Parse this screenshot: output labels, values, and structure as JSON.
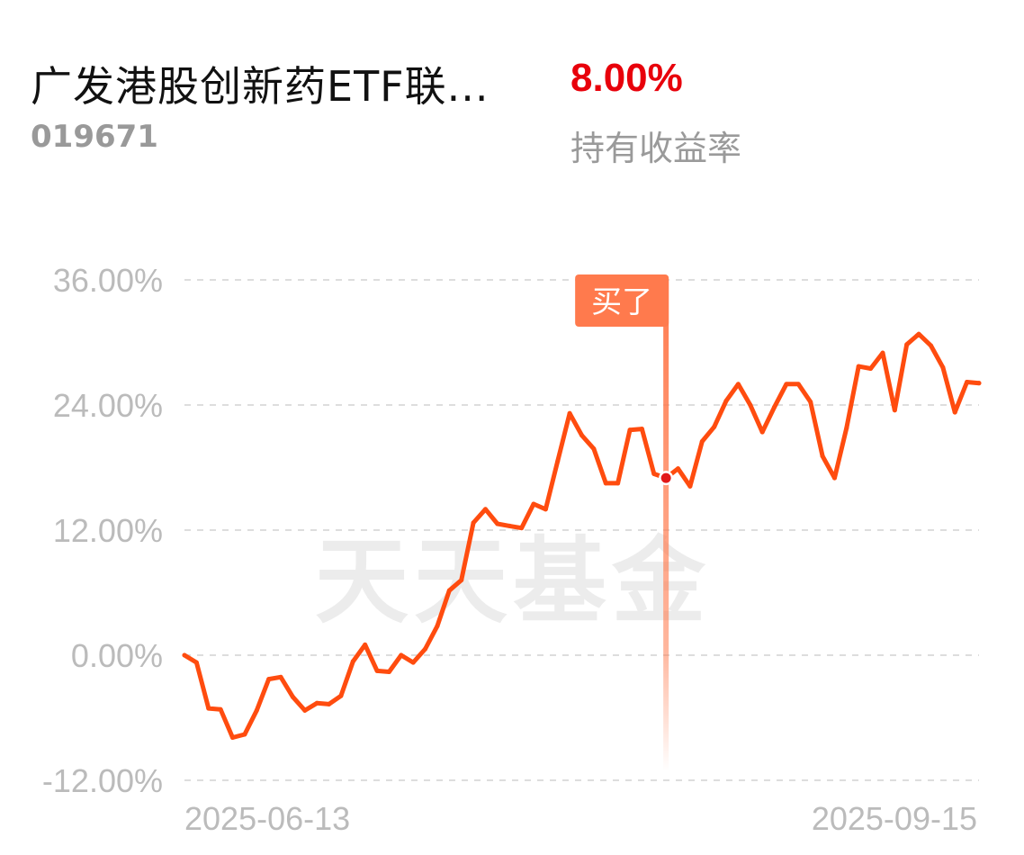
{
  "header": {
    "fund_name": "广发港股创新药ETF联...",
    "fund_code": "019671",
    "holding_return": "8.00%",
    "holding_return_label": "持有收益率"
  },
  "watermark": "天天基金",
  "colors": {
    "line": "#ff4c0f",
    "return_text": "#e8000b",
    "marker_tag": "#ff7a4d",
    "marker_dot": "#e21818",
    "grid": "#dddddd",
    "axis_text": "#bbbbbb"
  },
  "chart_data": {
    "type": "line",
    "ylim": [
      -12,
      36
    ],
    "yticks": [
      "-12.00%",
      "0.00%",
      "12.00%",
      "24.00%",
      "36.00%"
    ],
    "ytick_values": [
      -12,
      0,
      12,
      24,
      36
    ],
    "x_start_label": "2025-06-13",
    "x_end_label": "2025-09-15",
    "grid": true,
    "values": [
      0.0,
      -0.7,
      -5.1,
      -5.2,
      -7.9,
      -7.6,
      -5.3,
      -2.3,
      -2.1,
      -4.0,
      -5.3,
      -4.6,
      -4.7,
      -3.9,
      -0.6,
      1.0,
      -1.5,
      -1.6,
      0.0,
      -0.7,
      0.6,
      2.8,
      6.2,
      7.2,
      12.7,
      14.0,
      12.6,
      12.4,
      12.2,
      14.5,
      14.0,
      18.6,
      23.2,
      21.1,
      19.8,
      16.5,
      16.5,
      21.6,
      21.7,
      17.4,
      17.0,
      17.9,
      16.2,
      20.5,
      21.9,
      24.4,
      26.0,
      24.0,
      21.4,
      23.8,
      26.0,
      26.0,
      24.3,
      19.1,
      17.0,
      21.8,
      27.7,
      27.5,
      29.0,
      23.5,
      29.8,
      30.8,
      29.7,
      27.6,
      23.3,
      26.2,
      26.1
    ],
    "buy_marker": {
      "label": "买了",
      "index": 40,
      "value": 17.0
    }
  }
}
